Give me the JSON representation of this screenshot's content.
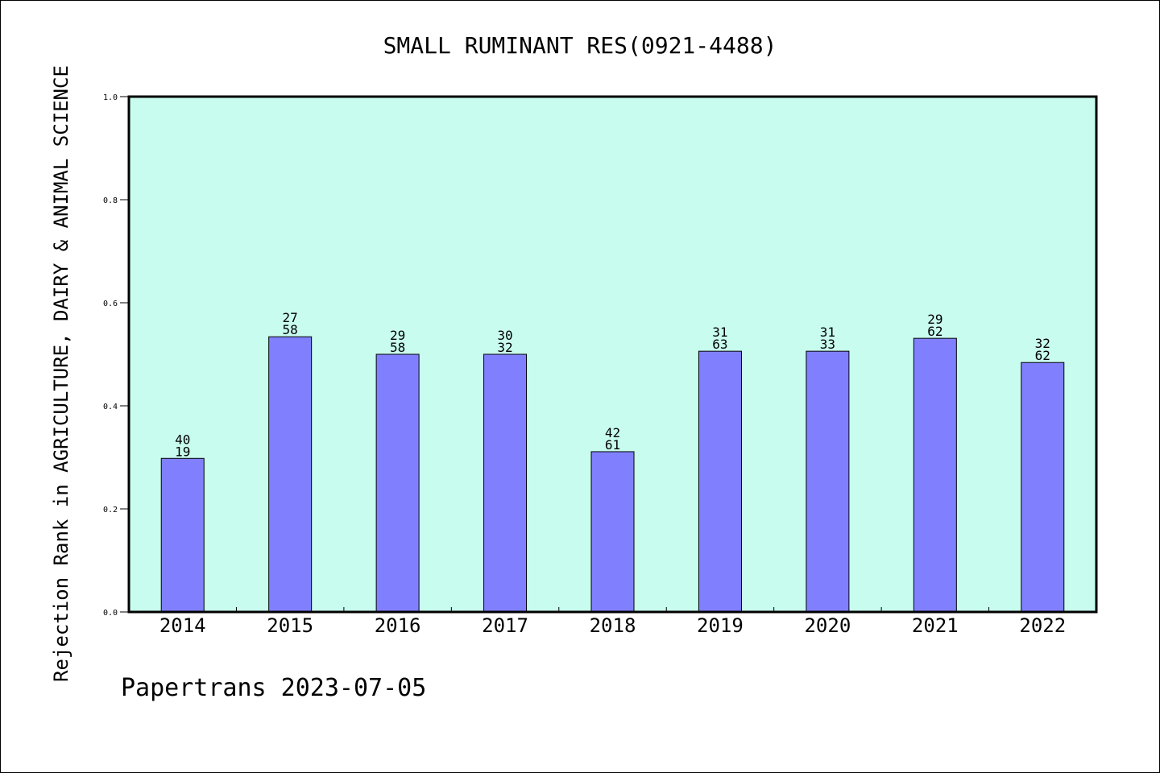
{
  "chart_data": {
    "type": "bar",
    "title": "SMALL RUMINANT RES(0921-4488)",
    "xlabel": "",
    "ylabel": "Rejection Rank in AGRICULTURE, DAIRY & ANIMAL SCIENCE",
    "ylim": [
      0.0,
      1.0
    ],
    "yticks": [
      "0.0",
      "0.2",
      "0.4",
      "0.6",
      "0.8",
      "1.0"
    ],
    "ytick_values": [
      0.0,
      0.2,
      0.4,
      0.6,
      0.8,
      1.0
    ],
    "categories": [
      "2014",
      "2015",
      "2016",
      "2017",
      "2018",
      "2019",
      "2020",
      "2021",
      "2022"
    ],
    "values": [
      0.298,
      0.534,
      0.5,
      0.5,
      0.311,
      0.506,
      0.506,
      0.531,
      0.484
    ],
    "labels_top": [
      "40",
      "27",
      "29",
      "30",
      "42",
      "31",
      "31",
      "29",
      "32"
    ],
    "labels_bottom": [
      "19",
      "58",
      "58",
      "32",
      "61",
      "63",
      "33",
      "62",
      "62"
    ],
    "grid": false,
    "legend": "none",
    "colors": {
      "plot_background": "#c8fcee",
      "bar_fill": "#8080ff",
      "bar_stroke": "#000000",
      "axis": "#000000"
    }
  },
  "footer": {
    "text": "Papertrans 2023-07-05"
  }
}
